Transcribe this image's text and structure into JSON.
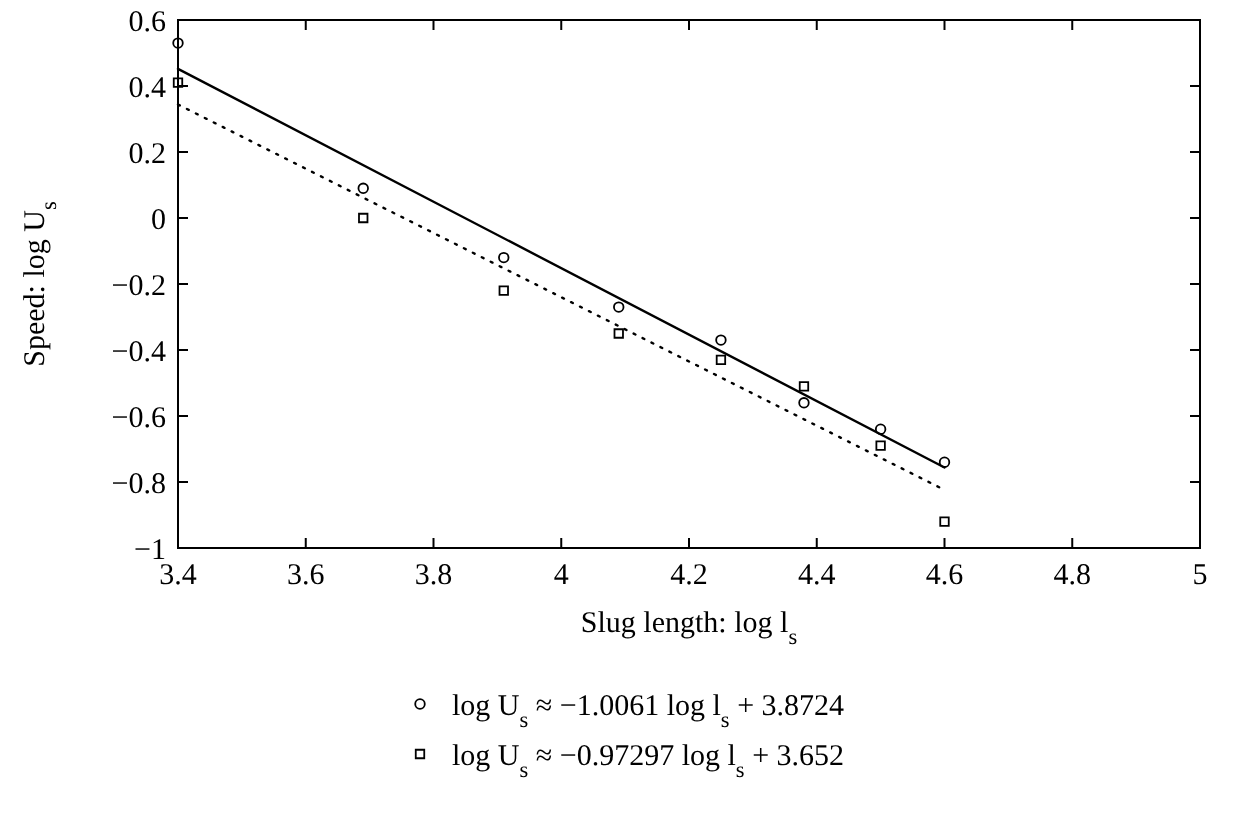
{
  "chart_data": {
    "type": "scatter",
    "xlabel": "Slug length: log l$_{s}$",
    "ylabel": "Speed: log U$_{s}$",
    "xlim": [
      3.4,
      5
    ],
    "xticks": [
      3.4,
      3.6,
      3.8,
      4,
      4.2,
      4.4,
      4.6,
      4.8,
      5
    ],
    "ylim": [
      -1,
      0.6
    ],
    "yticks": [
      0.6,
      0.4,
      0.2,
      0,
      {
        "value": -0.2,
        "label": "−0.2"
      },
      {
        "value": -0.4,
        "label": "−0.4"
      },
      {
        "value": -0.6,
        "label": "−0.6"
      },
      {
        "value": -0.8,
        "label": "−0.8"
      },
      {
        "value": -1,
        "label": "−1"
      }
    ],
    "grid": false,
    "legend": "bottom",
    "series": [
      {
        "name": "log U$_{s}$ ≈ −1.0061 log l$_{s}$ + 3.8724",
        "marker": "circle",
        "color": "#000000",
        "x": [
          3.4,
          3.69,
          3.91,
          4.09,
          4.25,
          4.38,
          4.5,
          4.6
        ],
        "values": [
          0.53,
          0.09,
          -0.12,
          -0.27,
          -0.37,
          -0.56,
          -0.64,
          -0.74
        ]
      },
      {
        "name": "log U$_{s}$ ≈ −0.97297 log l$_{s}$ + 3.652",
        "marker": "square",
        "color": "#000000",
        "x": [
          3.4,
          3.69,
          3.91,
          4.09,
          4.25,
          4.38,
          4.5,
          4.6
        ],
        "values": [
          0.41,
          0.0,
          -0.22,
          -0.35,
          -0.43,
          -0.51,
          -0.69,
          -0.92
        ]
      },
      {
        "type": "line",
        "line_style": "solid",
        "marker": "none",
        "color": "#000000",
        "x": [
          3.4,
          4.6
        ],
        "values": [
          0.452,
          -0.756
        ]
      },
      {
        "type": "line",
        "line_style": "dotted",
        "marker": "none",
        "color": "#000000",
        "x": [
          3.4,
          4.6
        ],
        "values": [
          0.344,
          -0.824
        ]
      }
    ]
  }
}
